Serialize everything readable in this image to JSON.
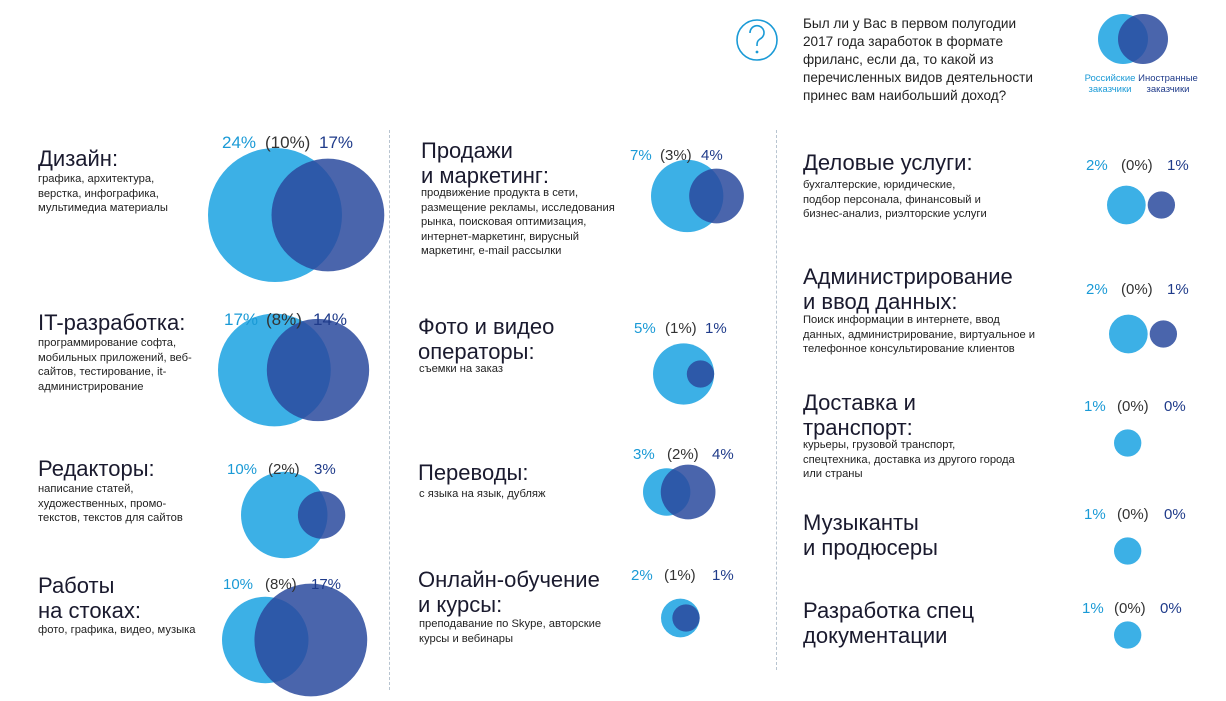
{
  "question": "Был ли у Вас в первом полугодии\n2017 года заработок в формате\nфриланс, если да, то какой из\nперечисленных видов деятельности\nпринес вам наибольший доход?",
  "legend": {
    "ru_label": "Российские\nзаказчики",
    "fo_label": "Иностранные\nзаказчики",
    "ru_color": "#3cb0e6",
    "fo_color": "#2a4a9e"
  },
  "icons": {
    "question": "question-mark-icon"
  },
  "chart_data": {
    "type": "venn-bubbles",
    "series": [
      {
        "name": "Российские заказчики"
      },
      {
        "name": "Иностранные заказчики"
      }
    ],
    "categories": [
      {
        "id": "design",
        "title": "Дизайн:",
        "desc": "графика, архитектура,\nверстка, инфографика,\nмультимедиа материалы",
        "ru": "24%",
        "both": "(10%)",
        "fo": "17%",
        "ru_value": 24,
        "fo_value": 17,
        "both_value": 10
      },
      {
        "id": "it",
        "title": "IT-разработка:",
        "desc": "программирование софта,\nмобильных приложений, веб-\nсайтов, тестирование, it-\nадминистрирование",
        "ru": "17%",
        "both": "(8%)",
        "fo": "14%",
        "ru_value": 17,
        "fo_value": 14,
        "both_value": 8
      },
      {
        "id": "editors",
        "title": "Редакторы:",
        "desc": "написание статей,\nхудожественных, промо-\nтекстов, текстов для сайтов",
        "ru": "10%",
        "both": "(2%)",
        "fo": "3%",
        "ru_value": 10,
        "fo_value": 3,
        "both_value": 2
      },
      {
        "id": "stock",
        "title": "Работы\nна стоках:",
        "desc": "фото, графика, видео, музыка",
        "ru": "10%",
        "both": "(8%)",
        "fo": "17%",
        "ru_value": 10,
        "fo_value": 17,
        "both_value": 8
      },
      {
        "id": "sales",
        "title": "Продажи\nи маркетинг:",
        "desc": "продвижение продукта в сети,\nразмещение рекламы, исследования\nрынка, поисковая оптимизация,\nинтернет-маркетинг, вирусный\nмаркетинг, e-mail рассылки",
        "ru": "7%",
        "both": "(3%)",
        "fo": "4%",
        "ru_value": 7,
        "fo_value": 4,
        "both_value": 3
      },
      {
        "id": "photo",
        "title": "Фото и видео\nоператоры:",
        "desc": "съемки на заказ",
        "ru": "5%",
        "both": "(1%)",
        "fo": "1%",
        "ru_value": 5,
        "fo_value": 1,
        "both_value": 1
      },
      {
        "id": "translations",
        "title": "Переводы:",
        "desc": "с языка на язык, дубляж",
        "ru": "3%",
        "both": "(2%)",
        "fo": "4%",
        "ru_value": 3,
        "fo_value": 4,
        "both_value": 2
      },
      {
        "id": "education",
        "title": "Онлайн-обучение\nи курсы:",
        "desc": "преподавание по Skype, авторские\nкурсы и вебинары",
        "ru": "2%",
        "both": "(1%)",
        "fo": "1%",
        "ru_value": 2,
        "fo_value": 1,
        "both_value": 1
      },
      {
        "id": "business",
        "title": "Деловые услуги:",
        "desc": "бухгалтерские, юридические,\nподбор персонала, финансовый и\nбизнес-анализ, риэлторские услуги",
        "ru": "2%",
        "both": "(0%)",
        "fo": "1%",
        "ru_value": 2,
        "fo_value": 1,
        "both_value": 0
      },
      {
        "id": "admin",
        "title": "Администрирование\nи ввод данных:",
        "desc": "Поиск информации в интернете, ввод\nданных, администрирование, виртуальное и\nтелефонное консультирование клиентов",
        "ru": "2%",
        "both": "(0%)",
        "fo": "1%",
        "ru_value": 2,
        "fo_value": 1,
        "both_value": 0
      },
      {
        "id": "delivery",
        "title": "Доставка и\nтранспорт:",
        "desc": "курьеры, грузовой транспорт,\nспецтехника, доставка из другого города\nили страны",
        "ru": "1%",
        "both": "(0%)",
        "fo": "0%",
        "ru_value": 1,
        "fo_value": 0,
        "both_value": 0
      },
      {
        "id": "music",
        "title": "Музыканты\nи продюсеры",
        "desc": "",
        "ru": "1%",
        "both": "(0%)",
        "fo": "0%",
        "ru_value": 1,
        "fo_value": 0,
        "both_value": 0
      },
      {
        "id": "docs",
        "title": "Разработка спец\nдокументации",
        "desc": "",
        "ru": "1%",
        "both": "(0%)",
        "fo": "0%",
        "ru_value": 1,
        "fo_value": 0,
        "both_value": 0
      }
    ]
  }
}
